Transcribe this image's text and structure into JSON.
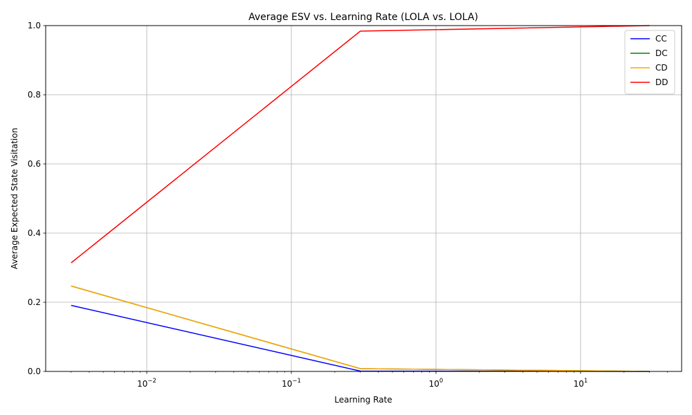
{
  "chart_data": {
    "type": "line",
    "title": "Average ESV vs. Learning Rate (LOLA vs. LOLA)",
    "xlabel": "Learning Rate",
    "ylabel": "Average Expected State Visitation",
    "xscale": "log",
    "xlim": [
      0.002,
      50
    ],
    "ylim": [
      0,
      1.0
    ],
    "grid": true,
    "legend_position": "top-right",
    "x": [
      0.003,
      0.3,
      30
    ],
    "x_ticks": [
      {
        "value": 0.01,
        "base": "10",
        "exp": "−2"
      },
      {
        "value": 0.1,
        "base": "10",
        "exp": "−1"
      },
      {
        "value": 1,
        "base": "10",
        "exp": "0"
      },
      {
        "value": 10,
        "base": "10",
        "exp": "1"
      }
    ],
    "y_ticks": [
      {
        "value": 0.0,
        "label": "0.0"
      },
      {
        "value": 0.2,
        "label": "0.2"
      },
      {
        "value": 0.4,
        "label": "0.4"
      },
      {
        "value": 0.6,
        "label": "0.6"
      },
      {
        "value": 0.8,
        "label": "0.8"
      },
      {
        "value": 1.0,
        "label": "1.0"
      }
    ],
    "series": [
      {
        "name": "CC",
        "color": "#0000ff",
        "values": [
          0.191,
          0.001,
          0.0
        ]
      },
      {
        "name": "DC",
        "color": "#008000",
        "values": [
          0.247,
          0.008,
          0.0
        ]
      },
      {
        "name": "CD",
        "color": "#ffa500",
        "values": [
          0.247,
          0.008,
          0.0
        ]
      },
      {
        "name": "DD",
        "color": "#ff0000",
        "values": [
          0.314,
          0.984,
          1.0
        ]
      }
    ]
  }
}
